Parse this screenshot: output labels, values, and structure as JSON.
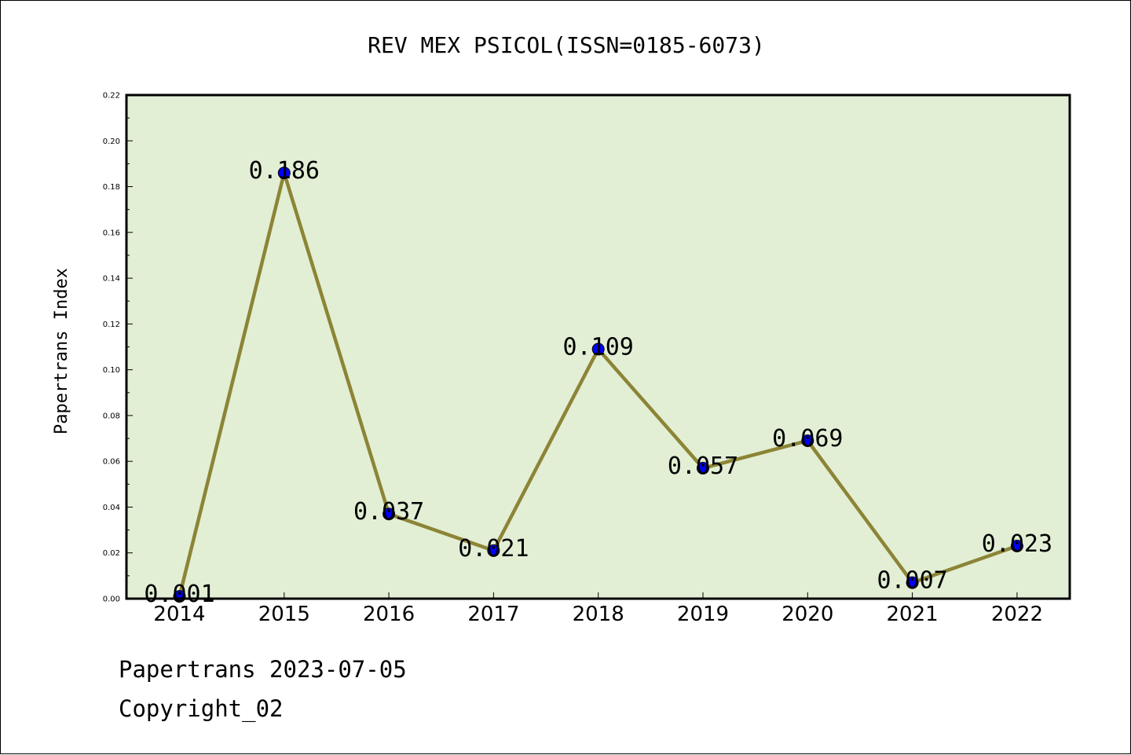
{
  "chart_data": {
    "type": "line",
    "title": "REV MEX PSICOL(ISSN=0185-6073)",
    "xlabel": "",
    "ylabel": "Papertrans Index",
    "categories": [
      "2014",
      "2015",
      "2016",
      "2017",
      "2018",
      "2019",
      "2020",
      "2021",
      "2022"
    ],
    "series": [
      {
        "values": [
          0.001,
          0.186,
          0.037,
          0.021,
          0.109,
          0.057,
          0.069,
          0.007,
          0.023
        ]
      }
    ],
    "data_labels": [
      "0.001",
      "0.186",
      "0.037",
      "0.021",
      "0.109",
      "0.057",
      "0.069",
      "0.007",
      "0.023"
    ],
    "ylim": [
      0,
      0.22
    ],
    "yticks": [
      0.0,
      0.02,
      0.04,
      0.06,
      0.08,
      0.1,
      0.12,
      0.14,
      0.16,
      0.18,
      0.2,
      0.22
    ],
    "ytick_labels": [
      "0.00",
      "0.02",
      "0.04",
      "0.06",
      "0.08",
      "0.10",
      "0.12",
      "0.14",
      "0.16",
      "0.18",
      "0.20",
      "0.22"
    ],
    "grid": false,
    "legend": "none",
    "colors": {
      "plot_background": "#e2efd5",
      "line": "#8c8436",
      "marker": "#0000ff",
      "axes": "#000000"
    }
  },
  "footer": {
    "date_text": "Papertrans 2023-07-05",
    "copyright_text": "Copyright_02"
  }
}
